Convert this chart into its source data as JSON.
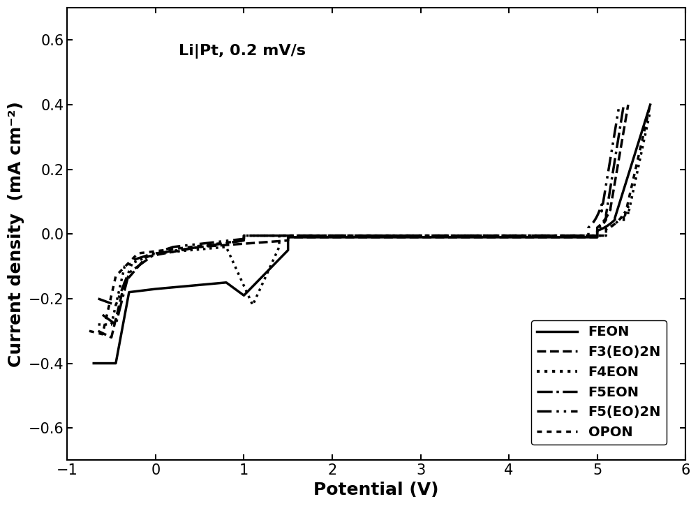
{
  "title_annotation": "Li|Pt, 0.2 mV/s",
  "xlabel": "Potential (V)",
  "ylabel": "Current density  (mA cm⁻²)",
  "xlim": [
    -1,
    6
  ],
  "ylim": [
    -0.7,
    0.7
  ],
  "xticks": [
    -1,
    0,
    1,
    2,
    3,
    4,
    5,
    6
  ],
  "yticks": [
    -0.6,
    -0.4,
    -0.2,
    0.0,
    0.2,
    0.4,
    0.6
  ],
  "legend_labels": [
    "FEON",
    "F3(EO)2N",
    "F4EON",
    "F5EON",
    "F5(EO)2N",
    "OPON"
  ],
  "linewidths": [
    2.5,
    2.5,
    2.5,
    2.5,
    2.5,
    2.5
  ],
  "color": "#000000",
  "background_color": "#ffffff",
  "annotation_fontsize": 16,
  "axis_label_fontsize": 18,
  "tick_fontsize": 15,
  "legend_fontsize": 14
}
